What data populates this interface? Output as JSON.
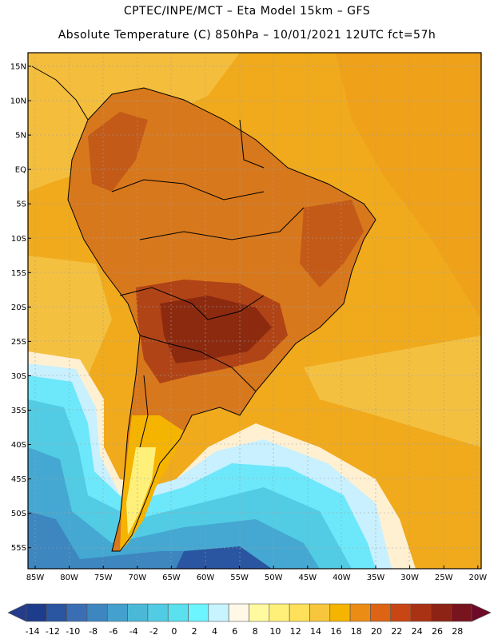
{
  "header": {
    "line1": "CPTEC/INPE/MCT –  Eta Model 15km – GFS",
    "line2": "Absolute Temperature (C) 850hPa – 10/01/2021 12UTC fct=57h"
  },
  "axes": {
    "lat_labels": [
      "15N",
      "10N",
      "5N",
      "EQ",
      "5S",
      "10S",
      "15S",
      "20S",
      "25S",
      "30S",
      "35S",
      "40S",
      "45S",
      "50S",
      "55S"
    ],
    "lon_labels": [
      "85W",
      "80W",
      "75W",
      "70W",
      "65W",
      "60W",
      "55W",
      "50W",
      "45W",
      "40W",
      "35W",
      "30W",
      "25W",
      "20W"
    ]
  },
  "colorbar": {
    "labels": [
      "-14",
      "-12",
      "-10",
      "-8",
      "-6",
      "-4",
      "-2",
      "0",
      "2",
      "4",
      "6",
      "8",
      "10",
      "12",
      "14",
      "16",
      "18",
      "20",
      "22",
      "24",
      "26",
      "28"
    ],
    "colors": [
      "#1e3c8c",
      "#2a55a0",
      "#3a6eb4",
      "#3d86c0",
      "#44a0cc",
      "#4cb8d8",
      "#52cce4",
      "#5ae0ee",
      "#6cf4ff",
      "#c8f4ff",
      "#fff8e6",
      "#fffaa0",
      "#fff07a",
      "#ffe05a",
      "#f7c63c",
      "#f5b400",
      "#eb8c14",
      "#dc6414",
      "#c84614",
      "#aa3214",
      "#8c2314",
      "#78141e"
    ],
    "left_arrow": "#243c8a",
    "right_arrow": "#6e0a28"
  },
  "colors": {
    "land_dark": "#c45a18",
    "land_mid": "#d8781c",
    "land_hot": "#8c2a10",
    "ocean_warm": "#f0a818",
    "ocean_mild": "#f4c040",
    "cold_1": "#5ad4ec",
    "cold_2": "#3a9cd0",
    "cold_3": "#2a6cb4"
  }
}
